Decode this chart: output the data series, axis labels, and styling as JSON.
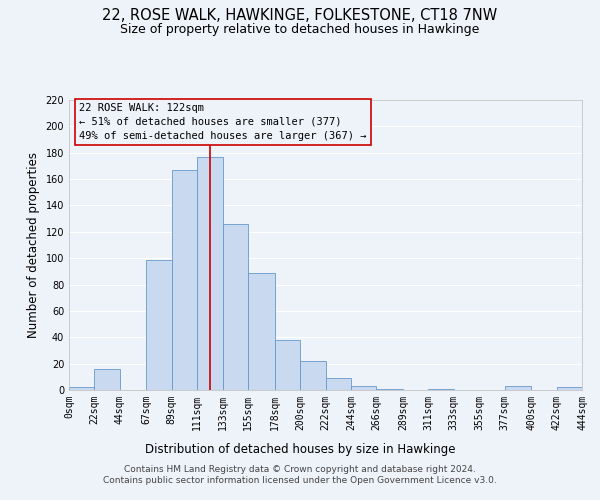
{
  "title": "22, ROSE WALK, HAWKINGE, FOLKESTONE, CT18 7NW",
  "subtitle": "Size of property relative to detached houses in Hawkinge",
  "xlabel": "Distribution of detached houses by size in Hawkinge",
  "ylabel": "Number of detached properties",
  "bin_edges": [
    0,
    22,
    44,
    67,
    89,
    111,
    133,
    155,
    178,
    200,
    222,
    244,
    266,
    289,
    311,
    333,
    355,
    377,
    400,
    422,
    444
  ],
  "bar_heights": [
    2,
    16,
    0,
    99,
    167,
    177,
    126,
    89,
    38,
    22,
    9,
    3,
    1,
    0,
    1,
    0,
    0,
    3,
    0,
    2
  ],
  "bar_color": "#c8d9f0",
  "bar_edgecolor": "#6699cc",
  "vline_x": 122,
  "vline_color": "#cc0000",
  "ylim": [
    0,
    220
  ],
  "yticks": [
    0,
    20,
    40,
    60,
    80,
    100,
    120,
    140,
    160,
    180,
    200,
    220
  ],
  "xtick_labels": [
    "0sqm",
    "22sqm",
    "44sqm",
    "67sqm",
    "89sqm",
    "111sqm",
    "133sqm",
    "155sqm",
    "178sqm",
    "200sqm",
    "222sqm",
    "244sqm",
    "266sqm",
    "289sqm",
    "311sqm",
    "333sqm",
    "355sqm",
    "377sqm",
    "400sqm",
    "422sqm",
    "444sqm"
  ],
  "annotation_box_text": "22 ROSE WALK: 122sqm\n← 51% of detached houses are smaller (377)\n49% of semi-detached houses are larger (367) →",
  "footer_line1": "Contains HM Land Registry data © Crown copyright and database right 2024.",
  "footer_line2": "Contains public sector information licensed under the Open Government Licence v3.0.",
  "background_color": "#eef2f9",
  "grid_color": "#ffffff",
  "title_fontsize": 10.5,
  "subtitle_fontsize": 9,
  "axis_label_fontsize": 8.5,
  "tick_fontsize": 7,
  "annotation_fontsize": 7.5,
  "footer_fontsize": 6.5
}
